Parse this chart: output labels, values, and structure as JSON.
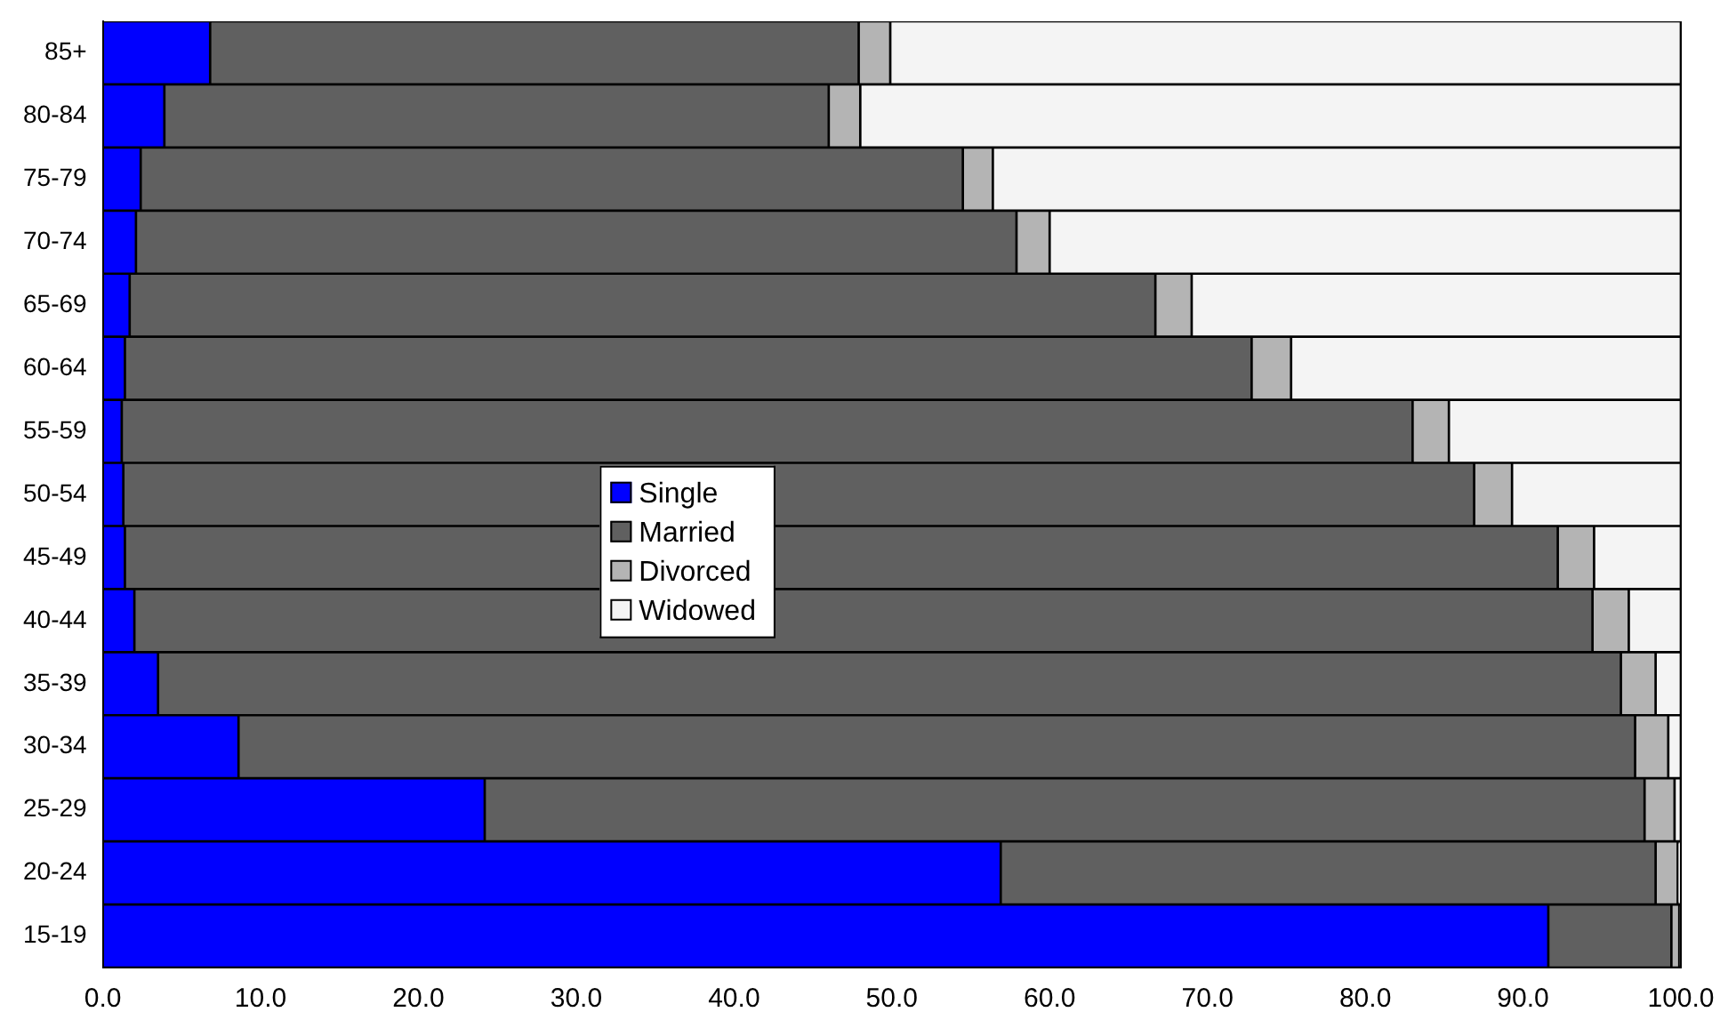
{
  "chart_data": {
    "type": "bar",
    "orientation": "horizontal",
    "stacked": true,
    "categories": [
      "85+",
      "80-84",
      "75-79",
      "70-74",
      "65-69",
      "60-64",
      "55-59",
      "50-54",
      "45-49",
      "40-44",
      "35-39",
      "30-34",
      "25-29",
      "20-24",
      "15-19"
    ],
    "series": [
      {
        "name": "Single",
        "color": "#0000ff",
        "values": [
          6.8,
          3.9,
          2.4,
          2.1,
          1.7,
          1.4,
          1.2,
          1.3,
          1.4,
          2.0,
          3.5,
          8.6,
          24.2,
          56.9,
          91.6
        ]
      },
      {
        "name": "Married",
        "color": "#606060",
        "values": [
          41.1,
          42.1,
          52.1,
          55.8,
          65.0,
          71.4,
          81.8,
          85.6,
          90.8,
          92.4,
          92.7,
          88.5,
          73.5,
          41.5,
          7.8
        ]
      },
      {
        "name": "Divorced",
        "color": "#b4b4b4",
        "values": [
          2.0,
          2.0,
          1.9,
          2.1,
          2.3,
          2.5,
          2.3,
          2.4,
          2.3,
          2.3,
          2.2,
          2.1,
          1.9,
          1.4,
          0.5
        ]
      },
      {
        "name": "Widowed",
        "color": "#f4f4f4",
        "values": [
          50.1,
          52.0,
          43.6,
          40.0,
          31.0,
          24.7,
          14.7,
          10.7,
          5.5,
          3.3,
          1.6,
          0.8,
          0.4,
          0.2,
          0.1
        ]
      }
    ],
    "xlim": [
      0,
      100
    ],
    "xticks": [
      {
        "value": 0,
        "label": "0.0"
      },
      {
        "value": 10,
        "label": "10.0"
      },
      {
        "value": 20,
        "label": "20.0"
      },
      {
        "value": 30,
        "label": "30.0"
      },
      {
        "value": 40,
        "label": "40.0"
      },
      {
        "value": 50,
        "label": "50.0"
      },
      {
        "value": 60,
        "label": "60.0"
      },
      {
        "value": 70,
        "label": "70.0"
      },
      {
        "value": 80,
        "label": "80.0"
      },
      {
        "value": 90,
        "label": "90.0"
      },
      {
        "value": 100,
        "label": "100.0"
      }
    ],
    "grid": false,
    "legend": "center"
  }
}
